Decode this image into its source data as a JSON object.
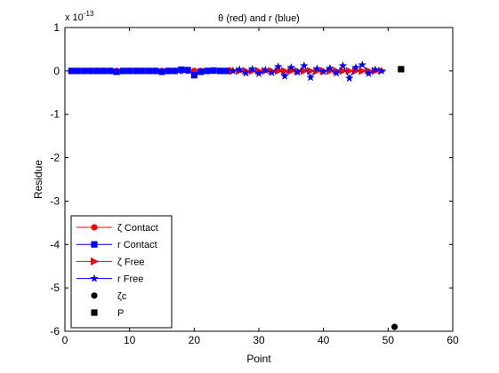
{
  "chart_data": {
    "type": "line",
    "title": "θ (red) and r (blue)",
    "xlabel": "Point",
    "ylabel": "Residue",
    "y_exponent_label": {
      "base": "x 10",
      "exp": "-13"
    },
    "xlim": [
      0,
      60
    ],
    "ylim": [
      -6,
      1
    ],
    "xticks": [
      0,
      10,
      20,
      30,
      40,
      50,
      60
    ],
    "yticks": [
      1,
      0,
      -1,
      -2,
      -3,
      -4,
      -5,
      -6
    ],
    "grid": false,
    "legend_position": "bottom-left",
    "series": [
      {
        "name": "ζ Contact",
        "color": "#ff0000",
        "marker": "circle",
        "line": true,
        "x": [
          1,
          2,
          3,
          4,
          5,
          6,
          7,
          8,
          9,
          10,
          11,
          12,
          13,
          14,
          15,
          16,
          17,
          18,
          19,
          20,
          21,
          22,
          23,
          24,
          25
        ],
        "y": [
          0,
          0,
          0,
          0,
          0,
          0,
          0,
          0,
          0,
          0,
          0,
          0,
          0,
          0,
          0,
          0,
          0,
          0,
          0,
          0,
          0,
          0,
          0,
          0,
          0
        ]
      },
      {
        "name": "r Contact",
        "color": "#0000ff",
        "marker": "square",
        "line": true,
        "x": [
          1,
          2,
          3,
          4,
          5,
          6,
          7,
          8,
          9,
          10,
          11,
          12,
          13,
          14,
          15,
          16,
          17,
          18,
          19,
          20,
          21,
          22,
          23,
          24,
          25
        ],
        "y": [
          0,
          0,
          0,
          0,
          0,
          0,
          0,
          -0.02,
          0,
          0,
          0,
          0,
          0,
          0,
          -0.02,
          0,
          0,
          0.03,
          0.02,
          -0.1,
          -0.02,
          0,
          0.01,
          0,
          0
        ]
      },
      {
        "name": "ζ Free",
        "color": "#ff0000",
        "marker": "triangle-right",
        "line": true,
        "x": [
          26,
          27,
          28,
          29,
          30,
          31,
          32,
          33,
          34,
          35,
          36,
          37,
          38,
          39,
          40,
          41,
          42,
          43,
          44,
          45,
          46,
          47,
          48,
          49
        ],
        "y": [
          0,
          0,
          0,
          0,
          0,
          0,
          0,
          0,
          0,
          0,
          0,
          0,
          0,
          0,
          0,
          0,
          0,
          0,
          0,
          0,
          0,
          0,
          0,
          0
        ]
      },
      {
        "name": "r Free",
        "color": "#0000ff",
        "marker": "star",
        "line": true,
        "x": [
          26,
          27,
          28,
          29,
          30,
          31,
          32,
          33,
          34,
          35,
          36,
          37,
          38,
          39,
          40,
          41,
          42,
          43,
          44,
          45,
          46,
          47,
          48,
          49
        ],
        "y": [
          0,
          0.03,
          -0.05,
          0.04,
          -0.06,
          0.02,
          -0.04,
          0.1,
          -0.12,
          0.08,
          -0.03,
          0.12,
          -0.15,
          0.05,
          -0.02,
          0.06,
          -0.05,
          0.12,
          -0.17,
          0.08,
          0.14,
          -0.06,
          0.03,
          0
        ]
      },
      {
        "name": "ζc",
        "color": "#000000",
        "marker": "circle",
        "line": false,
        "x": [
          51
        ],
        "y": [
          -5.9
        ]
      },
      {
        "name": "P",
        "color": "#000000",
        "marker": "square",
        "line": false,
        "x": [
          52
        ],
        "y": [
          0.04
        ]
      }
    ]
  }
}
